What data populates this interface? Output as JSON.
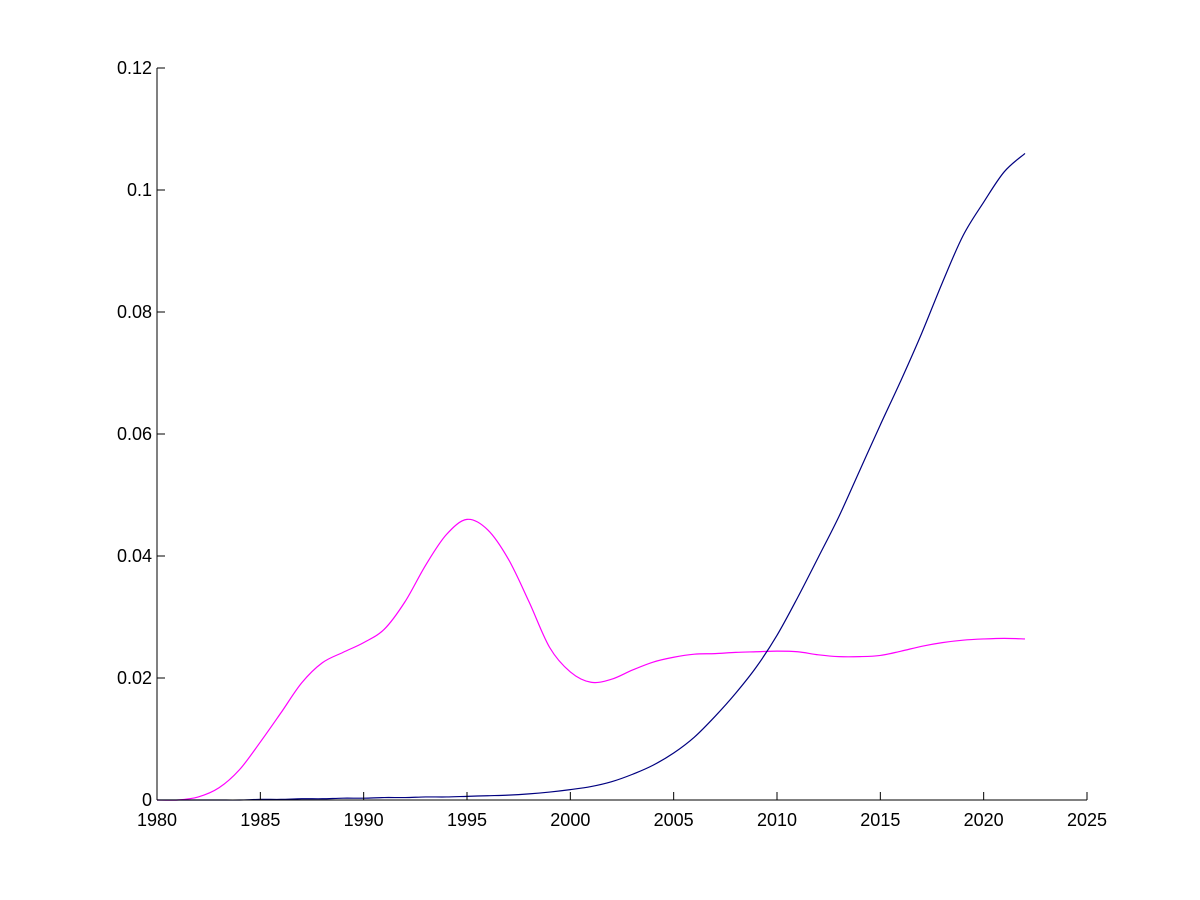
{
  "chart_data": {
    "type": "line",
    "title": "",
    "xlabel": "",
    "ylabel": "",
    "xlim": [
      1980,
      2025
    ],
    "ylim": [
      0,
      0.12
    ],
    "x_ticks": [
      1980,
      1985,
      1990,
      1995,
      2000,
      2005,
      2010,
      2015,
      2020,
      2025
    ],
    "x_tick_labels": [
      "1980",
      "1985",
      "1990",
      "1995",
      "2000",
      "2005",
      "2010",
      "2015",
      "2020",
      "2025"
    ],
    "y_ticks": [
      0,
      0.02,
      0.04,
      0.06,
      0.08,
      0.1,
      0.12
    ],
    "y_tick_labels": [
      "0",
      "0.02",
      "0.04",
      "0.06",
      "0.08",
      "0.1",
      "0.12"
    ],
    "grid": false,
    "legend": "none",
    "x": [
      1980,
      1981,
      1982,
      1983,
      1984,
      1985,
      1986,
      1987,
      1988,
      1989,
      1990,
      1991,
      1992,
      1993,
      1994,
      1995,
      1996,
      1997,
      1998,
      1999,
      2000,
      2001,
      2002,
      2003,
      2004,
      2005,
      2006,
      2007,
      2008,
      2009,
      2010,
      2011,
      2012,
      2013,
      2014,
      2015,
      2016,
      2017,
      2018,
      2019,
      2020,
      2021,
      2022
    ],
    "series": [
      {
        "color": "#ff00ff",
        "values": [
          0,
          0,
          0.0005,
          0.002,
          0.005,
          0.0095,
          0.0143,
          0.0192,
          0.0225,
          0.0242,
          0.0258,
          0.028,
          0.0325,
          0.0385,
          0.0435,
          0.046,
          0.0443,
          0.0395,
          0.0325,
          0.025,
          0.021,
          0.0193,
          0.0198,
          0.0213,
          0.0226,
          0.0234,
          0.0239,
          0.024,
          0.0242,
          0.0243,
          0.0244,
          0.0243,
          0.0238,
          0.0235,
          0.0235,
          0.0237,
          0.0244,
          0.0252,
          0.0258,
          0.0262,
          0.0264,
          0.0265,
          0.0264
        ]
      },
      {
        "color": "#000080",
        "values": [
          0,
          0,
          0,
          0,
          0,
          0.0001,
          0.0001,
          0.0002,
          0.0002,
          0.0003,
          0.0003,
          0.0004,
          0.0004,
          0.0005,
          0.0005,
          0.0006,
          0.0007,
          0.0008,
          0.001,
          0.0013,
          0.0017,
          0.0022,
          0.003,
          0.0042,
          0.0057,
          0.0077,
          0.0103,
          0.0137,
          0.0175,
          0.0218,
          0.027,
          0.0332,
          0.0398,
          0.0465,
          0.054,
          0.0615,
          0.0688,
          0.0765,
          0.0848,
          0.0925,
          0.098,
          0.103,
          0.106
        ]
      }
    ]
  }
}
